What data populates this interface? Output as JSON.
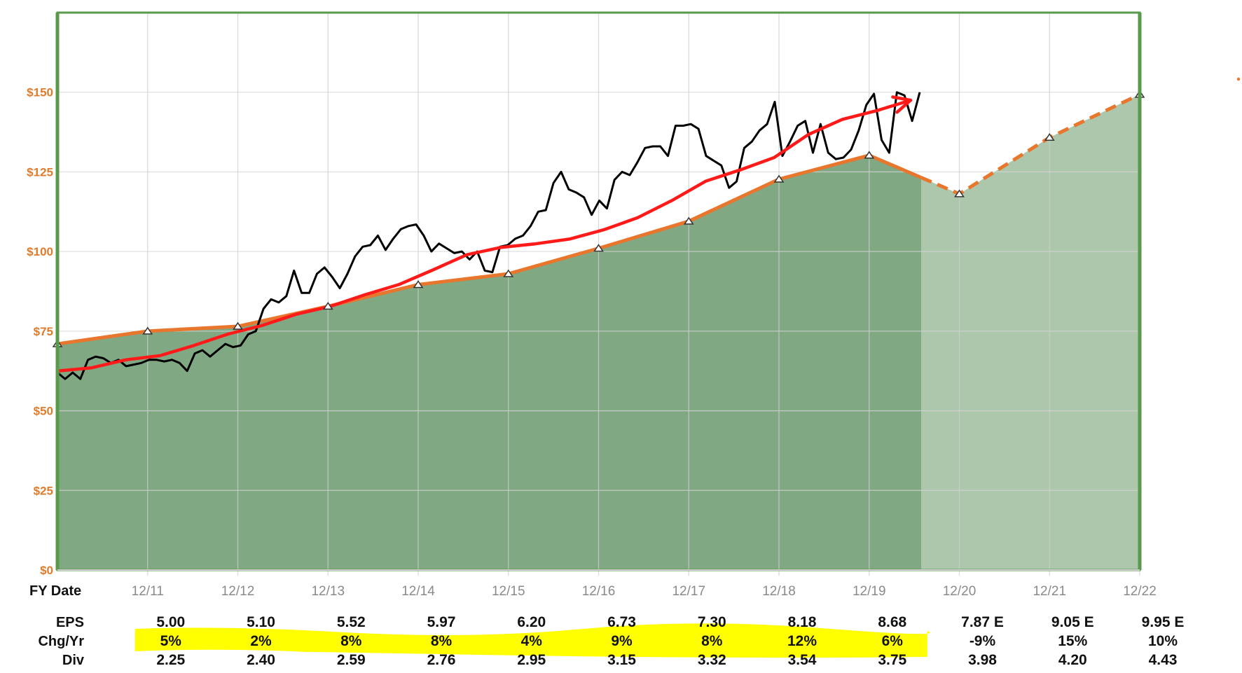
{
  "chart_data": {
    "type": "area",
    "xlabel": "FY Date",
    "x_ticks": [
      "12/11",
      "12/12",
      "12/13",
      "12/14",
      "12/15",
      "12/16",
      "12/17",
      "12/18",
      "12/19",
      "12/20",
      "12/21",
      "12/22"
    ],
    "ylim": [
      0,
      175
    ],
    "y_ticks": [
      "$0",
      "$25",
      "$50",
      "$75",
      "$100",
      "$125",
      "$150"
    ],
    "grid": true,
    "colors": {
      "fair_value_area": "#7fa883",
      "estimate_area": "#acc7ab",
      "fair_value_line": "#e8762d",
      "price_line": "#000000",
      "moving_average": "#ff1a1a",
      "frame": "#5a9a4c",
      "tick_text": "#e07b2c",
      "highlight": "#ffff00"
    },
    "fair_value_series": {
      "x": [
        "12/10",
        "12/11",
        "12/12",
        "12/13",
        "12/14",
        "12/15",
        "12/16",
        "12/17",
        "12/18",
        "12/19",
        "12/20",
        "12/21",
        "12/22"
      ],
      "values": [
        71,
        75,
        76.5,
        82.8,
        89.6,
        93,
        101,
        109.5,
        122.7,
        130.2,
        118.1,
        135.8,
        149.3
      ],
      "estimated_from": "12/19"
    },
    "price_series": {
      "values": [
        62,
        60,
        62,
        60,
        66,
        67,
        66.5,
        65,
        66,
        64,
        64.5,
        65,
        66,
        66,
        65.5,
        66,
        65,
        62.5,
        68,
        69,
        67,
        69,
        71,
        70,
        70.5,
        74,
        75,
        82,
        85,
        84,
        86,
        94,
        87,
        87,
        93,
        95,
        92,
        88.5,
        93,
        98.5,
        101.5,
        102,
        105,
        100.5,
        104,
        107,
        108,
        108.5,
        105,
        100,
        102.5,
        101,
        99.5,
        100,
        97.5,
        100,
        94,
        93.5,
        101.5,
        102,
        104,
        105,
        108,
        112.5,
        113,
        121.5,
        125,
        119.5,
        118.5,
        117,
        111.5,
        116,
        113.5,
        122.5,
        125,
        124,
        128,
        132.5,
        133,
        133,
        130,
        139.5,
        139.5,
        140,
        138.5,
        130,
        128.5,
        127,
        120,
        122,
        132.5,
        134.5,
        138,
        140,
        147,
        130,
        134.5,
        139.5,
        141,
        131,
        140,
        131,
        129,
        129.5,
        132,
        138,
        146,
        149.5,
        135,
        131,
        150,
        149,
        141,
        150
      ]
    },
    "moving_average": {
      "values": [
        62.5,
        63.5,
        66,
        67.3,
        70.5,
        74.1,
        76.8,
        80.3,
        82.8,
        86.4,
        89.6,
        94.2,
        99,
        101.3,
        102.4,
        103.9,
        106.8,
        110.6,
        116,
        122.1,
        125.6,
        129.5,
        136.7,
        141.5,
        144.2,
        147.5
      ]
    },
    "table": {
      "columns": [
        "12/11",
        "12/12",
        "12/13",
        "12/14",
        "12/15",
        "12/16",
        "12/17",
        "12/18",
        "12/19",
        "12/20",
        "12/21",
        "12/22"
      ],
      "rows": [
        {
          "label": "EPS",
          "values": [
            "5.00",
            "5.10",
            "5.52",
            "5.97",
            "6.20",
            "6.73",
            "7.30",
            "8.18",
            "8.68",
            "7.87 E",
            "9.05 E",
            "9.95 E"
          ]
        },
        {
          "label": "Chg/Yr",
          "values": [
            "5%",
            "2%",
            "8%",
            "8%",
            "4%",
            "9%",
            "8%",
            "12%",
            "6%",
            "-9%",
            "15%",
            "10%"
          ]
        },
        {
          "label": "Div",
          "values": [
            "2.25",
            "2.40",
            "2.59",
            "2.76",
            "2.95",
            "3.15",
            "3.32",
            "3.54",
            "3.75",
            "3.98",
            "4.20",
            "4.43"
          ]
        }
      ],
      "highlighted_columns": [
        "12/11",
        "12/12",
        "12/13",
        "12/14",
        "12/15",
        "12/16",
        "12/17",
        "12/18",
        "12/19"
      ]
    }
  }
}
